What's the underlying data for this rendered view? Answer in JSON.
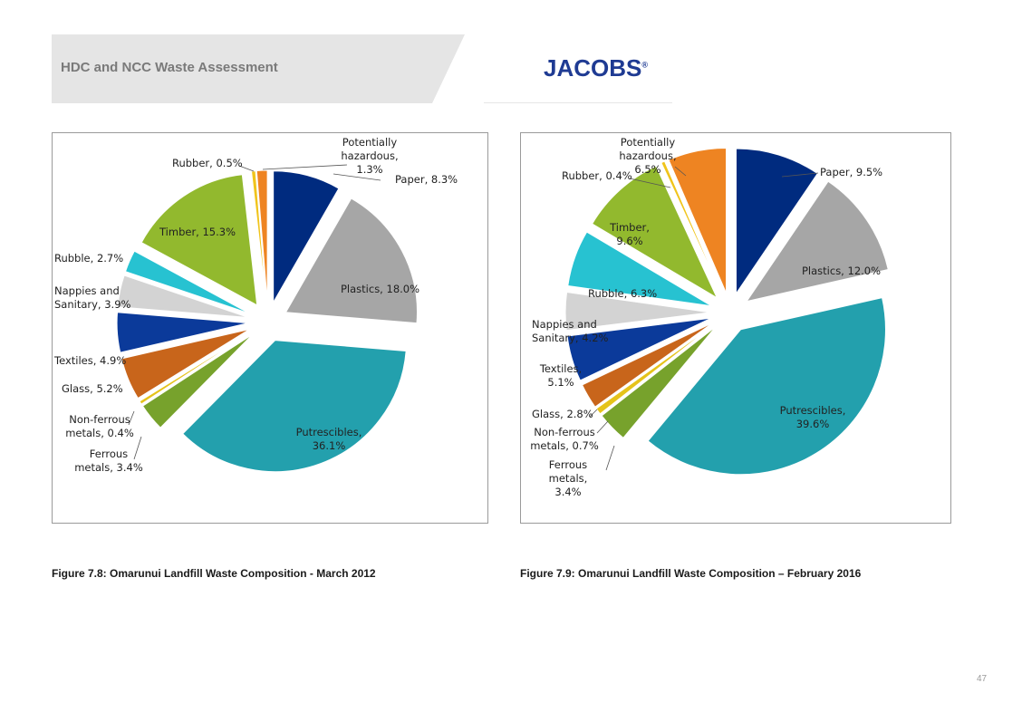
{
  "header": {
    "title": "HDC and NCC Waste Assessment",
    "logo_text": "JACOBS",
    "logo_reg": "®"
  },
  "colors": {
    "header_band": "#e5e5e5",
    "logo": "#1f3b93",
    "paper": "#002b7f",
    "plastics": "#a6a6a6",
    "putrescibles": "#23a0ad",
    "ferrous_metals": "#77a22c",
    "non_ferrous_metals": "#e5c31a",
    "glass": "#c8651b",
    "textiles": "#0b3a9a",
    "nappies": "#d3d3d3",
    "rubble": "#27c2d1",
    "timber": "#92b92e",
    "rubber": "#f0c41b",
    "hazardous": "#ee8422"
  },
  "chart_data": [
    {
      "type": "pie",
      "title": "",
      "slices": [
        {
          "label": "Paper",
          "value": 8.3,
          "text": "Paper, 8.3%",
          "color": "#002b7f"
        },
        {
          "label": "Plastics",
          "value": 18.0,
          "text": "Plastics, 18.0%",
          "color": "#a6a6a6"
        },
        {
          "label": "Putrescibles",
          "value": 36.1,
          "text": [
            "Putrescibles,",
            "36.1%"
          ],
          "color": "#23a0ad"
        },
        {
          "label": "Ferrous metals",
          "value": 3.4,
          "text": [
            "Ferrous",
            "metals, 3.4%"
          ],
          "color": "#77a22c"
        },
        {
          "label": "Non-ferrous metals",
          "value": 0.4,
          "text": [
            "Non-ferrous",
            "metals, 0.4%"
          ],
          "color": "#e5c31a"
        },
        {
          "label": "Glass",
          "value": 5.2,
          "text": "Glass, 5.2%",
          "color": "#c8651b"
        },
        {
          "label": "Textiles",
          "value": 4.9,
          "text": "Textiles, 4.9%",
          "color": "#0b3a9a"
        },
        {
          "label": "Nappies and Sanitary",
          "value": 3.9,
          "text": [
            "Nappies and",
            "Sanitary, 3.9%"
          ],
          "color": "#d3d3d3"
        },
        {
          "label": "Rubble",
          "value": 2.7,
          "text": "Rubble, 2.7%",
          "color": "#27c2d1"
        },
        {
          "label": "Timber",
          "value": 15.3,
          "text": "Timber, 15.3%",
          "color": "#92b92e"
        },
        {
          "label": "Rubber",
          "value": 0.5,
          "text": "Rubber, 0.5%",
          "color": "#f0c41b"
        },
        {
          "label": "Potentially hazardous",
          "value": 1.3,
          "text": [
            "Potentially",
            "hazardous,",
            "1.3%"
          ],
          "color": "#ee8422"
        }
      ]
    },
    {
      "type": "pie",
      "title": "",
      "slices": [
        {
          "label": "Paper",
          "value": 9.5,
          "text": "Paper, 9.5%",
          "color": "#002b7f"
        },
        {
          "label": "Plastics",
          "value": 12.0,
          "text": "Plastics, 12.0%",
          "color": "#a6a6a6"
        },
        {
          "label": "Putrescibles",
          "value": 39.6,
          "text": [
            "Putrescibles,",
            "39.6%"
          ],
          "color": "#23a0ad"
        },
        {
          "label": "Ferrous metals",
          "value": 3.4,
          "text": [
            "Ferrous",
            "metals,",
            "3.4%"
          ],
          "color": "#77a22c"
        },
        {
          "label": "Non-ferrous metals",
          "value": 0.7,
          "text": [
            "Non-ferrous",
            "metals, 0.7%"
          ],
          "color": "#e5c31a"
        },
        {
          "label": "Glass",
          "value": 2.8,
          "text": "Glass, 2.8%",
          "color": "#c8651b"
        },
        {
          "label": "Textiles",
          "value": 5.1,
          "text": [
            "Textiles,",
            "5.1%"
          ],
          "color": "#0b3a9a"
        },
        {
          "label": "Nappies and Sanitary",
          "value": 4.2,
          "text": [
            "Nappies and",
            "Sanitary, 4.2%"
          ],
          "color": "#d3d3d3"
        },
        {
          "label": "Rubble",
          "value": 6.3,
          "text": "Rubble, 6.3%",
          "color": "#27c2d1"
        },
        {
          "label": "Timber",
          "value": 9.6,
          "text": [
            "Timber,",
            "9.6%"
          ],
          "color": "#92b92e"
        },
        {
          "label": "Rubber",
          "value": 0.4,
          "text": "Rubber, 0.4%",
          "color": "#f0c41b"
        },
        {
          "label": "Potentially hazardous",
          "value": 6.5,
          "text": [
            "Potentially",
            "hazardous,",
            "6.5%"
          ],
          "color": "#ee8422"
        }
      ]
    }
  ],
  "captions": {
    "fig1": "Figure 7.8: Omarunui Landfill Waste Composition - March 2012",
    "fig2": "Figure 7.9: Omarunui Landfill Waste Composition – February 2016"
  },
  "page_number": "47"
}
